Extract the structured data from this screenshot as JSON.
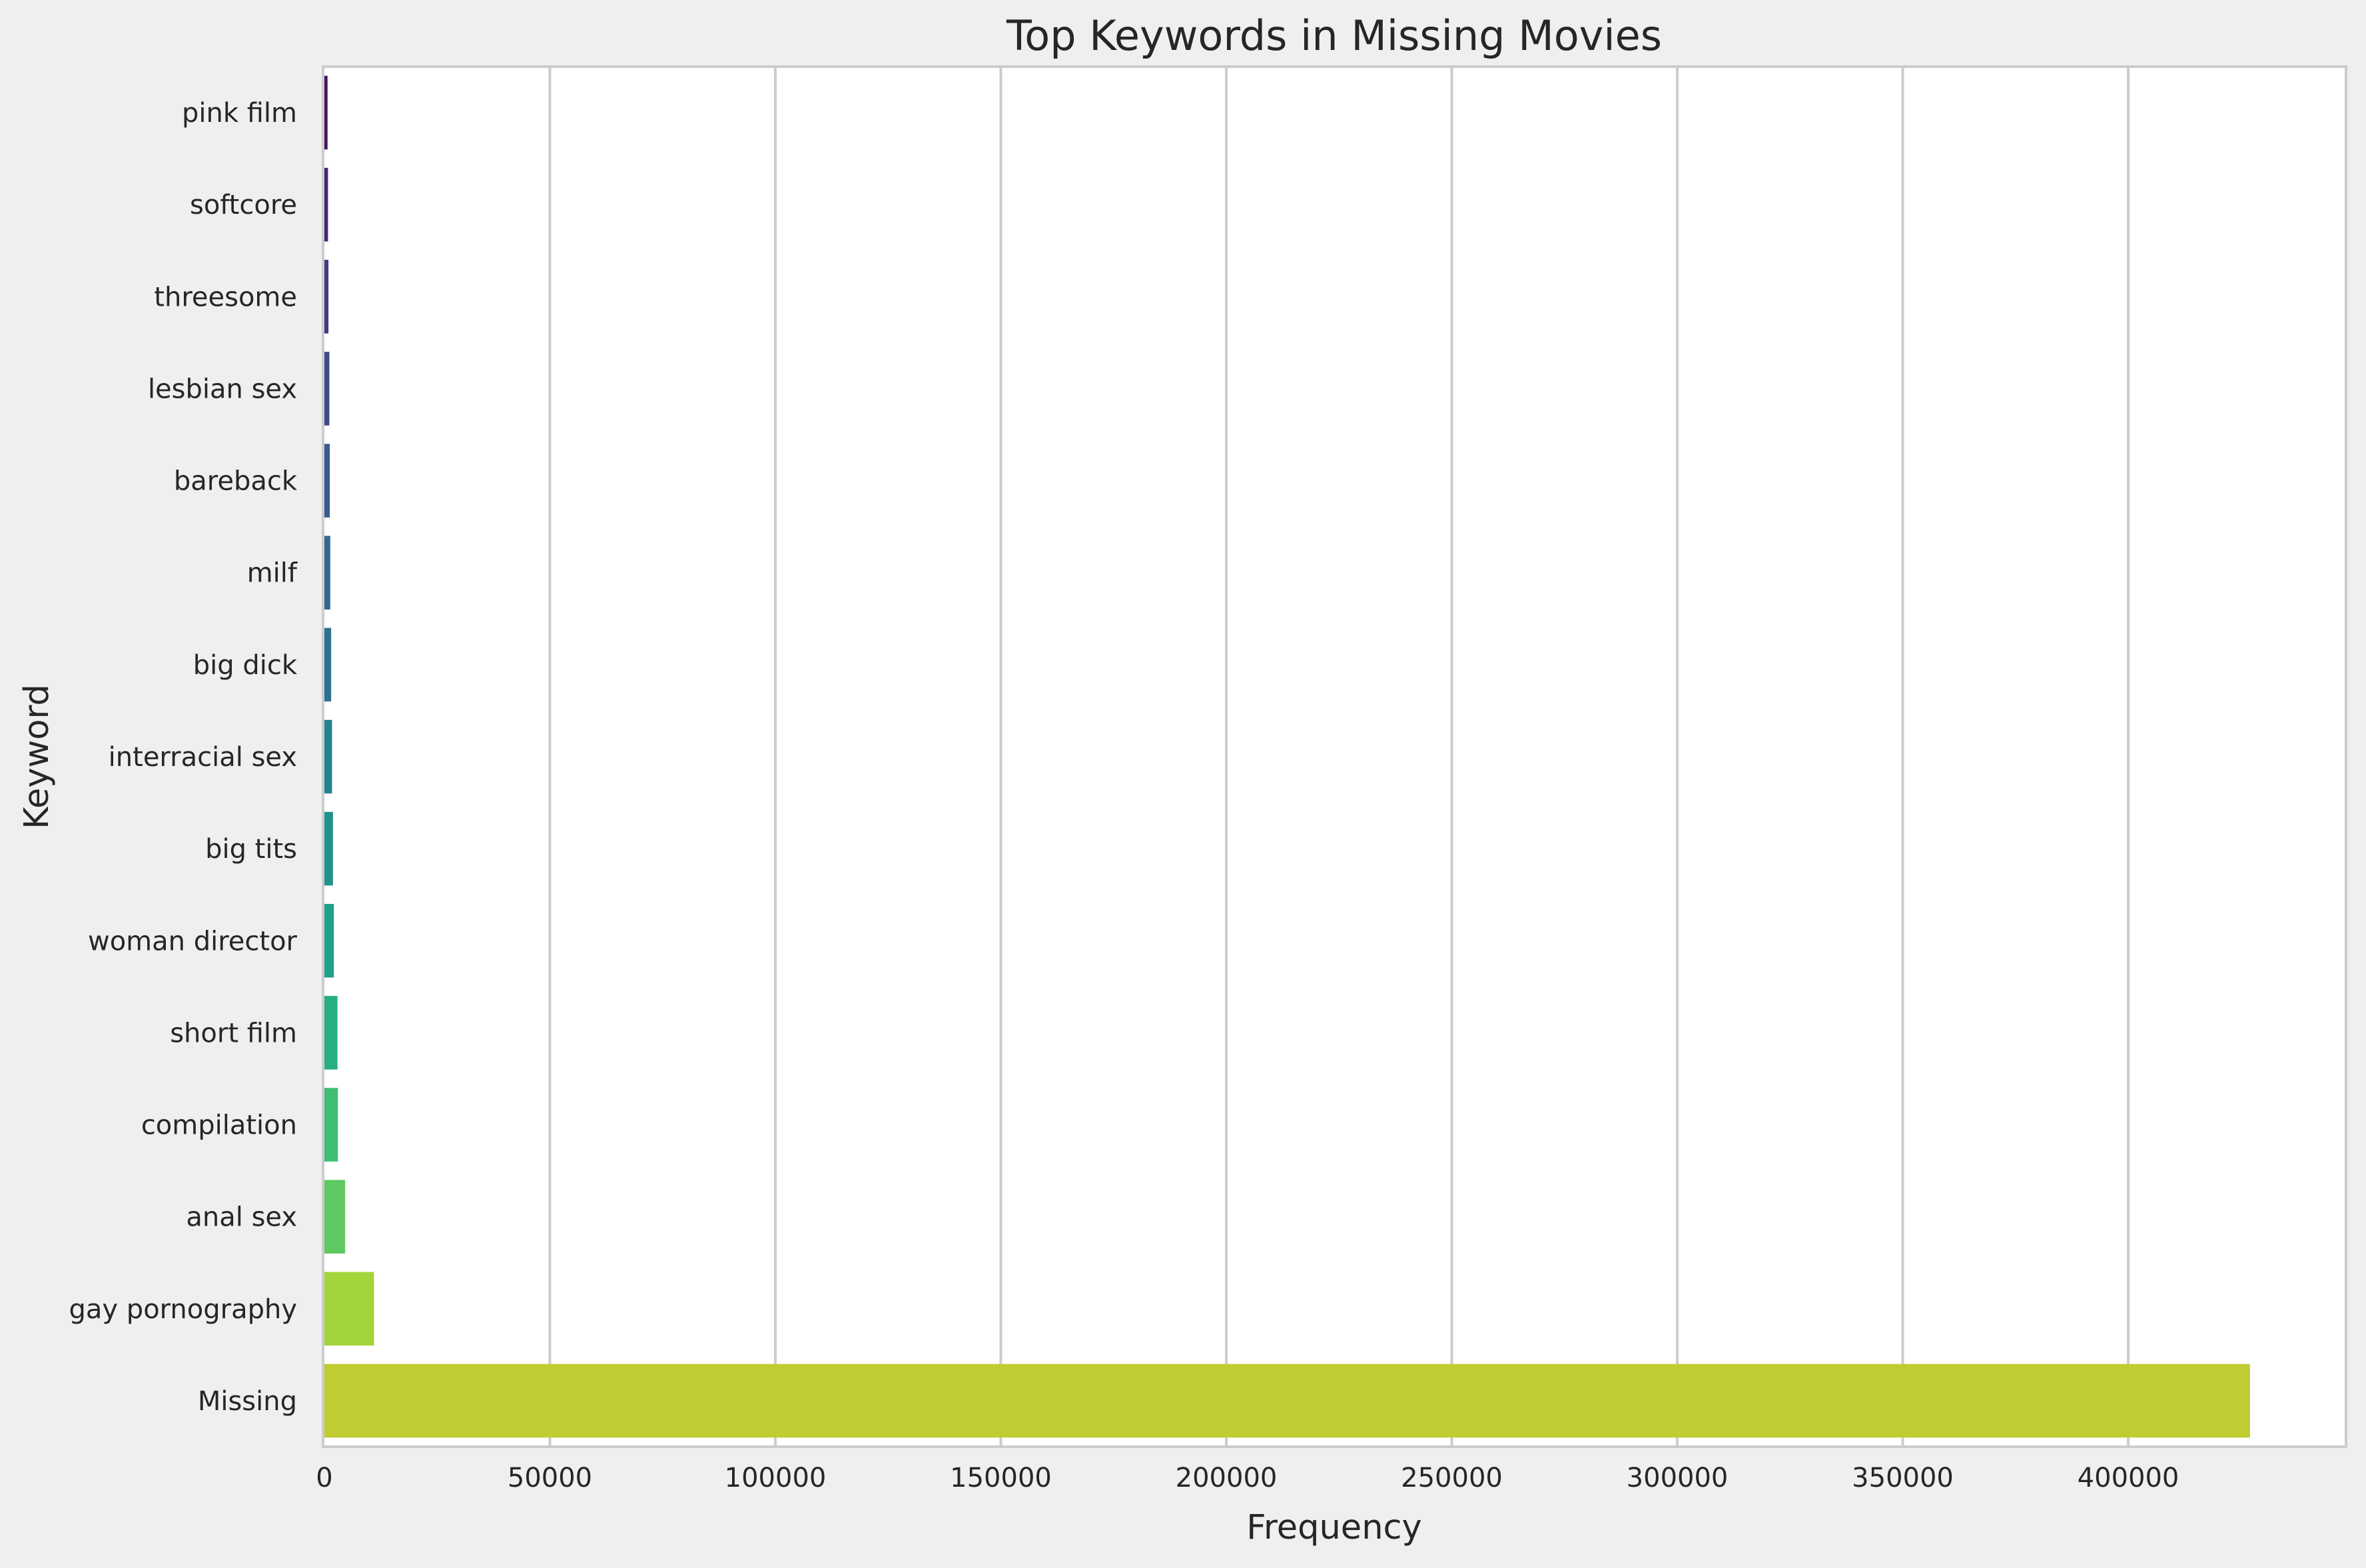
{
  "chart_data": {
    "type": "bar",
    "orientation": "horizontal",
    "title": "Top Keywords in Missing Movies",
    "xlabel": "Frequency",
    "ylabel": "Keyword",
    "xlim": [
      0,
      448000
    ],
    "x_ticks": [
      0,
      50000,
      100000,
      150000,
      200000,
      250000,
      300000,
      350000,
      400000
    ],
    "grid": "vertical",
    "categories": [
      "pink film",
      "softcore",
      "threesome",
      "lesbian sex",
      "bareback",
      "milf",
      "big dick",
      "interracial sex",
      "big tits",
      "woman director",
      "short film",
      "compilation",
      "anal sex",
      "gay pornography",
      "Missing"
    ],
    "values": [
      700,
      800,
      900,
      1100,
      1200,
      1300,
      1500,
      1700,
      1900,
      2100,
      2900,
      3000,
      4600,
      11000,
      427000
    ],
    "colors": [
      "#471164",
      "#482475",
      "#443983",
      "#3e4a89",
      "#375b8d",
      "#31688e",
      "#2c728e",
      "#26828e",
      "#21918c",
      "#1fa088",
      "#29af7f",
      "#40bd72",
      "#5ec962",
      "#a2d53c",
      "#c0cc32"
    ]
  }
}
